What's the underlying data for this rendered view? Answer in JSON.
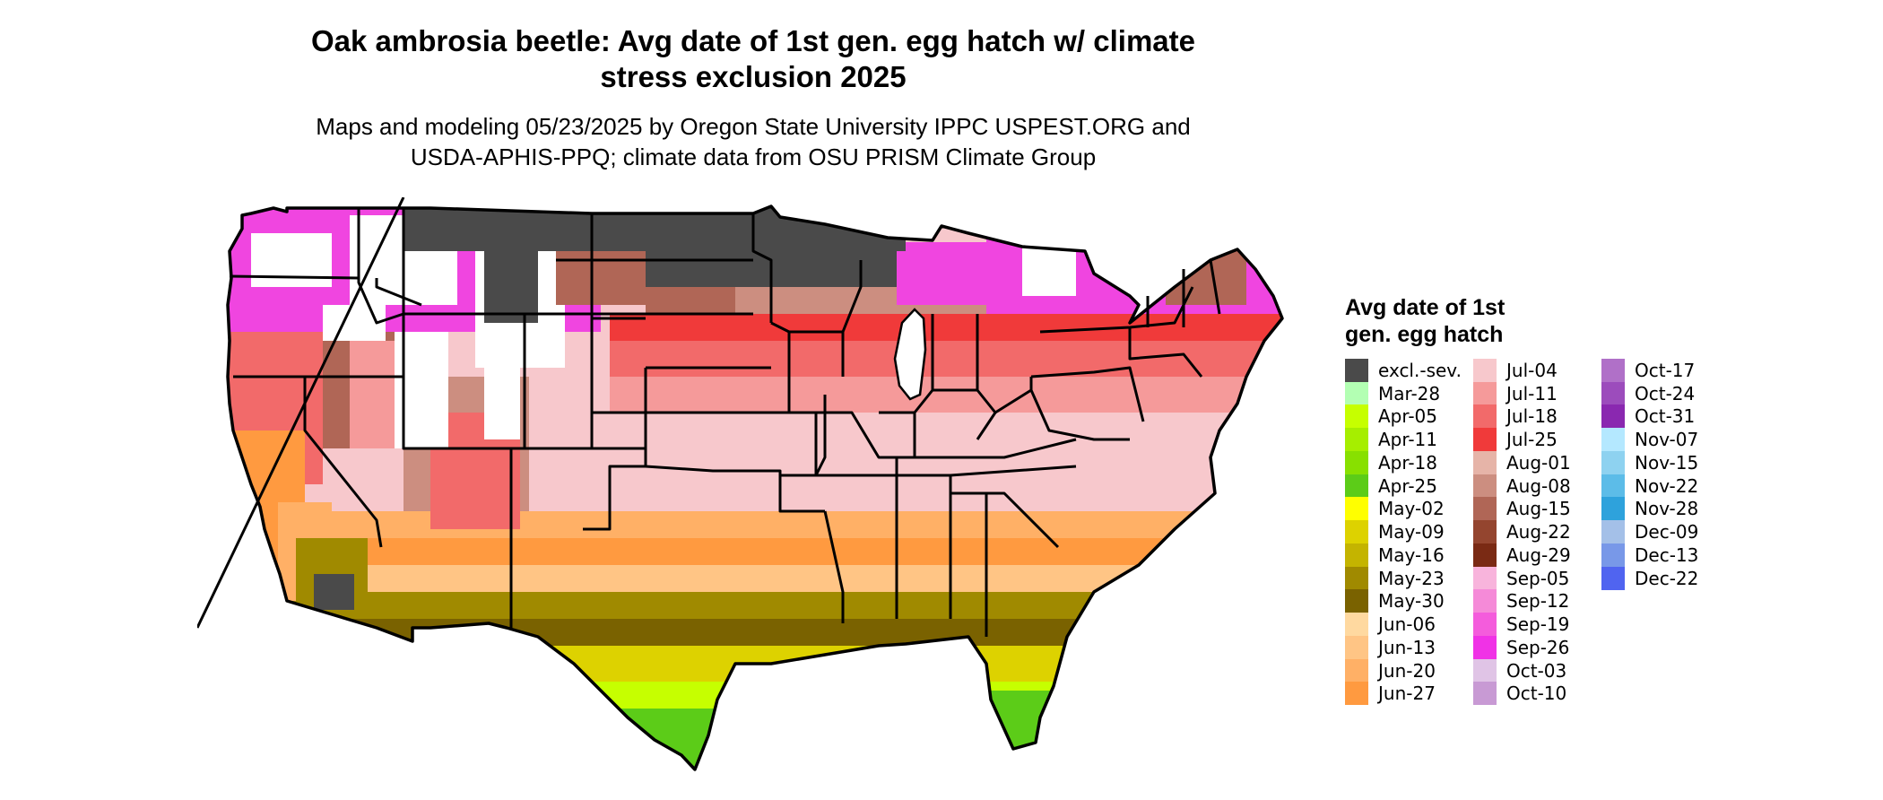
{
  "title": "Oak ambrosia beetle: Avg date of 1st gen. egg hatch w/ climate stress exclusion 2025",
  "title_line1": "Oak ambrosia beetle: Avg date of 1st gen. egg hatch w/ climate",
  "title_line2": "stress exclusion 2025",
  "subtitle_line1": "Maps and modeling 05/23/2025 by Oregon State University IPPC USPEST.ORG and",
  "subtitle_line2": "USDA-APHIS-PPQ; climate data from OSU PRISM Climate Group",
  "legend": {
    "title_line1": "Avg date of 1st",
    "title_line2": "gen. egg hatch",
    "columns": [
      [
        {
          "label": "excl.-sev.",
          "color": "#4a4a4a"
        },
        {
          "label": "Mar-28",
          "color": "#b3ffb3"
        },
        {
          "label": "Apr-05",
          "color": "#c6ff00"
        },
        {
          "label": "Apr-11",
          "color": "#a6ee00"
        },
        {
          "label": "Apr-18",
          "color": "#88e000"
        },
        {
          "label": "Apr-25",
          "color": "#5ccc18"
        },
        {
          "label": "May-02",
          "color": "#ffff00"
        },
        {
          "label": "May-09",
          "color": "#ddd200"
        },
        {
          "label": "May-16",
          "color": "#c4b400"
        },
        {
          "label": "May-23",
          "color": "#a08a00"
        },
        {
          "label": "May-30",
          "color": "#7a6200"
        },
        {
          "label": "Jun-06",
          "color": "#ffd9a0"
        },
        {
          "label": "Jun-13",
          "color": "#ffc585"
        },
        {
          "label": "Jun-20",
          "color": "#ffb066"
        },
        {
          "label": "Jun-27",
          "color": "#ff9a40"
        }
      ],
      [
        {
          "label": "Jul-04",
          "color": "#f7c8cc"
        },
        {
          "label": "Jul-11",
          "color": "#f59a9a"
        },
        {
          "label": "Jul-18",
          "color": "#f26a6a"
        },
        {
          "label": "Jul-25",
          "color": "#f03a3a"
        },
        {
          "label": "Aug-01",
          "color": "#e6b4a8"
        },
        {
          "label": "Aug-08",
          "color": "#cc8e80"
        },
        {
          "label": "Aug-15",
          "color": "#b06656"
        },
        {
          "label": "Aug-22",
          "color": "#94452f"
        },
        {
          "label": "Aug-29",
          "color": "#7a2a14"
        },
        {
          "label": "Sep-05",
          "color": "#f8b4dc"
        },
        {
          "label": "Sep-12",
          "color": "#f58ad8"
        },
        {
          "label": "Sep-19",
          "color": "#f45cdc"
        },
        {
          "label": "Sep-26",
          "color": "#f032e6"
        },
        {
          "label": "Oct-03",
          "color": "#e0c4e6"
        },
        {
          "label": "Oct-10",
          "color": "#c89ad4"
        }
      ],
      [
        {
          "label": "Oct-17",
          "color": "#b070c8"
        },
        {
          "label": "Oct-24",
          "color": "#9c4cbc"
        },
        {
          "label": "Oct-31",
          "color": "#8a28b0"
        },
        {
          "label": "Nov-07",
          "color": "#b4e8ff"
        },
        {
          "label": "Nov-15",
          "color": "#8ed2f0"
        },
        {
          "label": "Nov-22",
          "color": "#5cbce8"
        },
        {
          "label": "Nov-28",
          "color": "#2ea2dc"
        },
        {
          "label": "Dec-09",
          "color": "#a4c0e8"
        },
        {
          "label": "Dec-13",
          "color": "#7898e8"
        },
        {
          "label": "Dec-22",
          "color": "#5064f0"
        }
      ]
    ]
  },
  "map": {
    "background": "#ffffff",
    "border_color": "#000000",
    "excluded_color": "#4a4a4a"
  }
}
